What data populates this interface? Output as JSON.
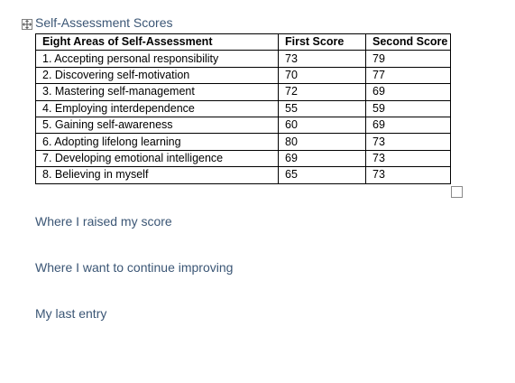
{
  "table_title": "Self-Assessment Scores",
  "table": {
    "headers": [
      "Eight Areas of Self-Assessment",
      "First Score",
      "Second Score"
    ],
    "rows": [
      [
        "1. Accepting personal responsibility",
        "73",
        "79"
      ],
      [
        "2. Discovering self-motivation",
        "70",
        "77"
      ],
      [
        "3. Mastering self-management",
        "72",
        "69"
      ],
      [
        "4. Employing interdependence",
        "55",
        "59"
      ],
      [
        "5. Gaining self-awareness",
        "60",
        "69"
      ],
      [
        "6. Adopting lifelong learning",
        "80",
        "73"
      ],
      [
        "7. Developing emotional intelligence",
        "69",
        "73"
      ],
      [
        "8. Believing in myself",
        "65",
        "73"
      ]
    ]
  },
  "headings": {
    "raised": "Where I raised my score",
    "improving": "Where I want to continue improving",
    "last_entry": "My last entry"
  },
  "icons": {
    "move": "table-move-icon",
    "resize": "table-resize-icon"
  },
  "colors": {
    "heading": "#3b5675",
    "table_border": "#000000"
  }
}
